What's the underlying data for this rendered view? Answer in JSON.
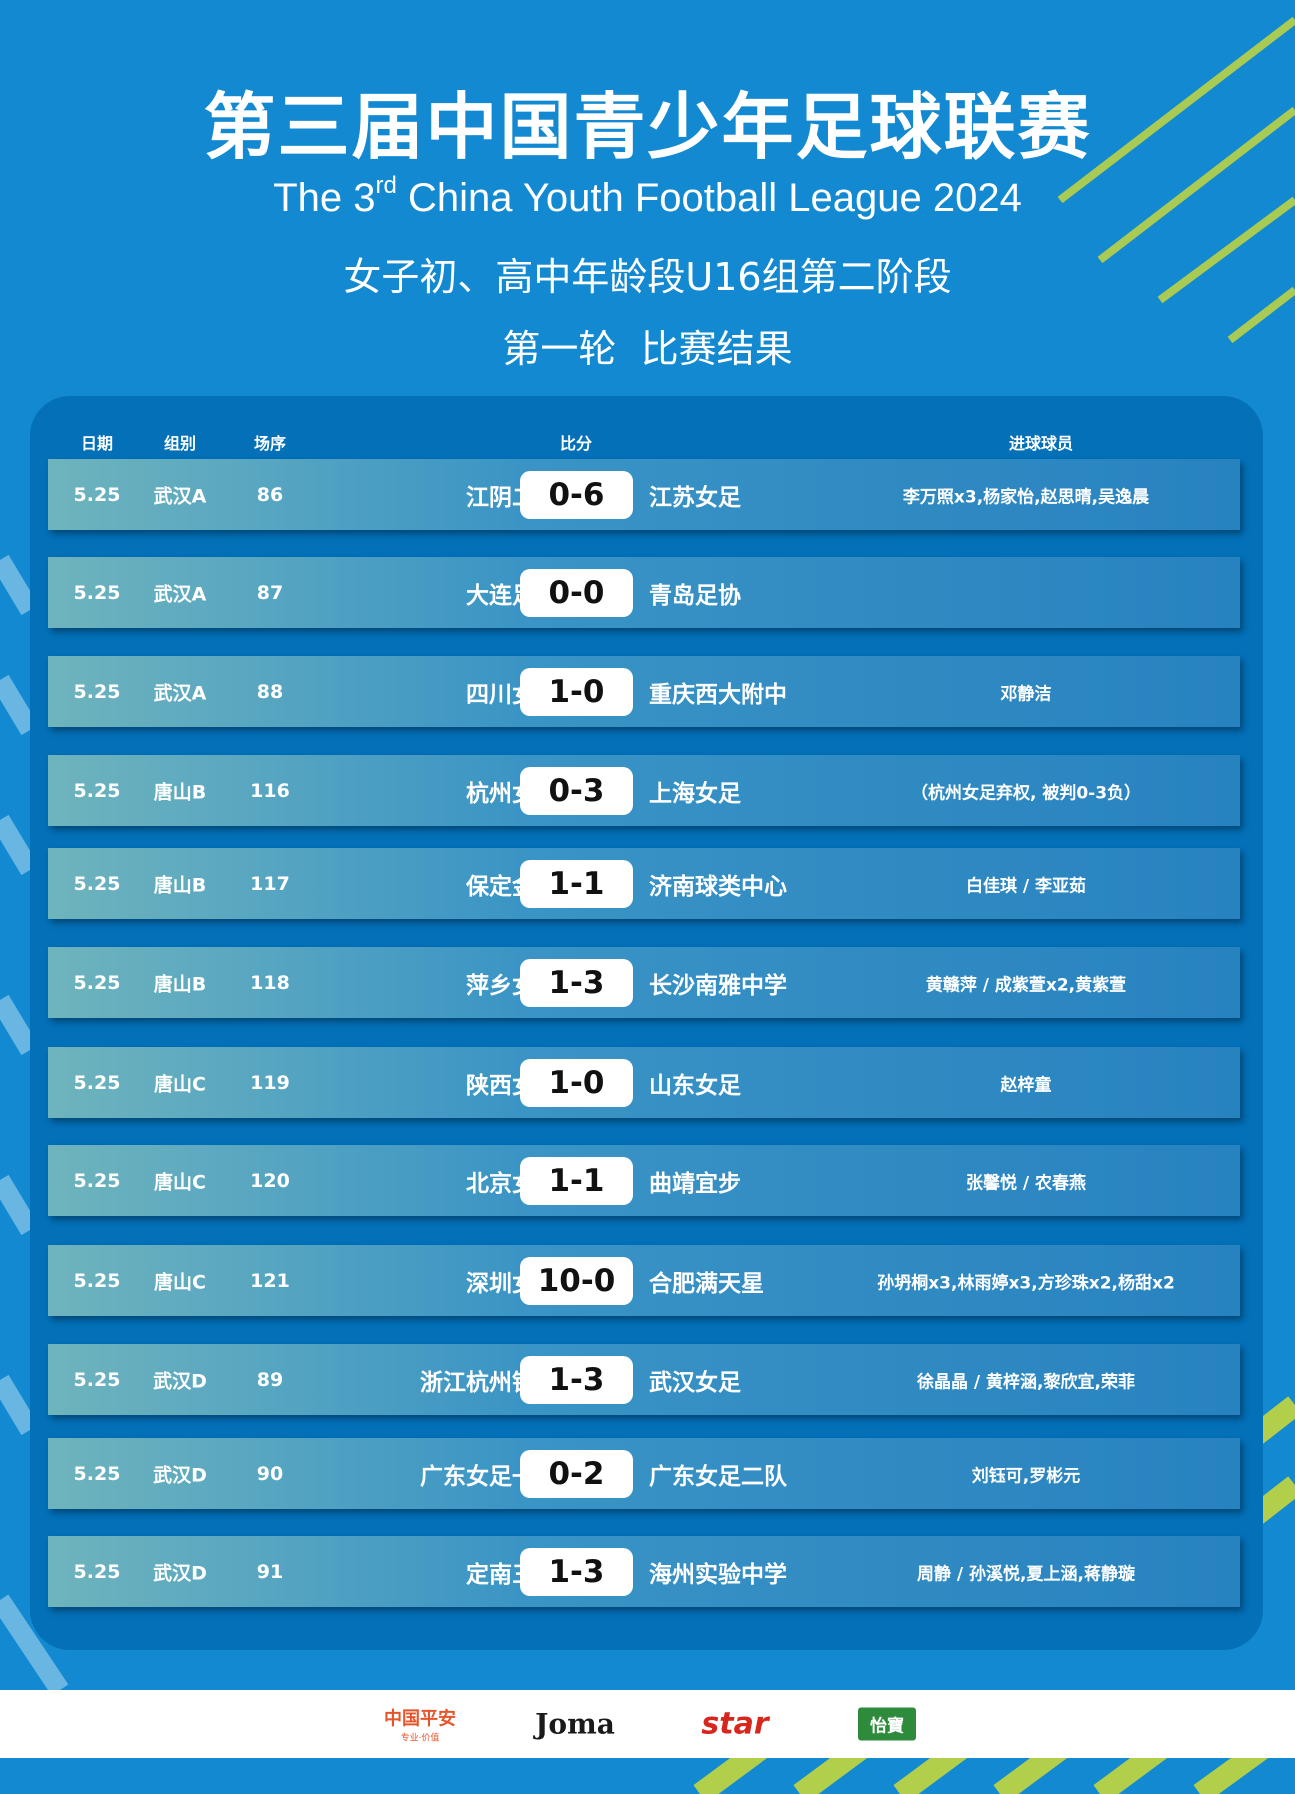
{
  "header": {
    "title_cn": "第三届中国青少年足球联赛",
    "title_en_pre": "The 3",
    "title_en_sup": "rd",
    "title_en_post": " China Youth Football League 2024",
    "subtitle": "女子初、高中年龄段U16组第二阶段",
    "round": "第一轮  比赛结果"
  },
  "columns": {
    "date": "日期",
    "group": "组别",
    "match_no": "场序",
    "score": "比分",
    "scorers": "进球球员"
  },
  "matches": [
    {
      "date": "5.25",
      "group": "武汉A",
      "no": "86",
      "home": "江阴二中",
      "score": "0-6",
      "away": "江苏女足",
      "scorers": "李万照x3,杨家怡,赵思晴,吴逸晨"
    },
    {
      "date": "5.25",
      "group": "武汉A",
      "no": "87",
      "home": "大连足校",
      "score": "0-0",
      "away": "青岛足协",
      "scorers": ""
    },
    {
      "date": "5.25",
      "group": "武汉A",
      "no": "88",
      "home": "四川女足",
      "score": "1-0",
      "away": "重庆西大附中",
      "scorers": "邓静洁"
    },
    {
      "date": "5.25",
      "group": "唐山B",
      "no": "116",
      "home": "杭州女足",
      "score": "0-3",
      "away": "上海女足",
      "scorers": "（杭州女足弃权, 被判0-3负）"
    },
    {
      "date": "5.25",
      "group": "唐山B",
      "no": "117",
      "home": "保定金瑞",
      "score": "1-1",
      "away": "济南球类中心",
      "scorers": "白佳琪 / 李亚茹"
    },
    {
      "date": "5.25",
      "group": "唐山B",
      "no": "118",
      "home": "萍乡女足",
      "score": "1-3",
      "away": "长沙南雅中学",
      "scorers": "黄赣萍 / 成紫萱x2,黄紫萱"
    },
    {
      "date": "5.25",
      "group": "唐山C",
      "no": "119",
      "home": "陕西女足",
      "score": "1-0",
      "away": "山东女足",
      "scorers": "赵梓童"
    },
    {
      "date": "5.25",
      "group": "唐山C",
      "no": "120",
      "home": "北京女足",
      "score": "1-1",
      "away": "曲靖宜步",
      "scorers": "张馨悦 / 农春燕"
    },
    {
      "date": "5.25",
      "group": "唐山C",
      "no": "121",
      "home": "深圳女足",
      "score": "10-0",
      "away": "合肥满天星",
      "scorers": "孙坍桐x3,林雨婷x3,方珍珠x2,杨甜x2"
    },
    {
      "date": "5.25",
      "group": "武汉D",
      "no": "89",
      "home": "浙江杭州银行",
      "score": "1-3",
      "away": "武汉女足",
      "scorers": "徐晶晶 / 黄梓涵,黎欣宜,荣菲"
    },
    {
      "date": "5.25",
      "group": "武汉D",
      "no": "90",
      "home": "广东女足一队",
      "score": "0-2",
      "away": "广东女足二队",
      "scorers": "刘钰可,罗彬元"
    },
    {
      "date": "5.25",
      "group": "武汉D",
      "no": "91",
      "home": "定南三中",
      "score": "1-3",
      "away": "海州实验中学",
      "scorers": "周静 / 孙溪悦,夏上涵,蒋静璇"
    }
  ],
  "sponsors": [
    {
      "name": "中国平安",
      "tagline": "专业·价值"
    },
    {
      "name": "Joma"
    },
    {
      "name": "star"
    },
    {
      "name": "怡寶"
    }
  ],
  "colors": {
    "background": "#1289d0",
    "panel": "#0370b8",
    "accent_stripe": "#cfdc34"
  }
}
